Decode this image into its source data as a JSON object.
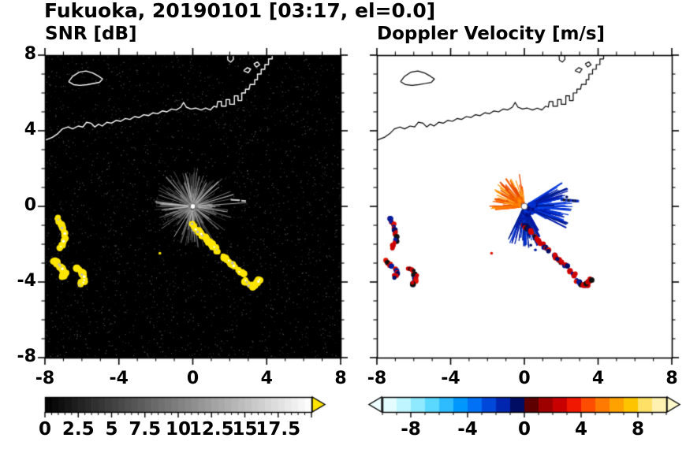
{
  "title": "Fukuoka, 20190101 [03:17, el=0.0]",
  "chart_data": [
    {
      "panel": "left",
      "type": "heatmap",
      "title": "SNR [dB]",
      "xlabel": "",
      "ylabel": "",
      "xlim": [
        -8,
        8
      ],
      "ylim": [
        -8,
        8
      ],
      "x_tick_labels": [
        "-8",
        "-4",
        "0",
        "4",
        "8"
      ],
      "x_tick_values": [
        -8,
        -4,
        0,
        4,
        8
      ],
      "y_tick_labels": [
        "8",
        "4",
        "0",
        "-4",
        "-8"
      ],
      "y_tick_values": [
        8,
        4,
        0,
        -4,
        -8
      ],
      "minor_tick_step": 1,
      "background": "#000000",
      "radar_center": [
        0,
        0
      ],
      "colorbar": {
        "min": 0,
        "max": 20,
        "labels": [
          "0",
          "2.5",
          "5",
          "7.5",
          "10",
          "12.5",
          "15",
          "17.5"
        ],
        "label_values": [
          0,
          2.5,
          5,
          7.5,
          10,
          12.5,
          15,
          17.5
        ],
        "minor_tick_step": 0.5,
        "type": "grayscale",
        "start_color": "#000000",
        "end_color": "#ffffff",
        "arrow_right_color": "#ffe400"
      },
      "content": {
        "noise_speckle_count": 2300,
        "clutter_rays": {
          "count": 280,
          "max_len_km": 1.9
        },
        "long_rays_deg_km": [
          [
            4,
            2.9
          ],
          [
            16,
            2.3
          ],
          [
            175,
            2.0
          ],
          [
            187,
            1.7
          ],
          [
            -9,
            1.9
          ],
          [
            258,
            1.3
          ],
          [
            102,
            1.3
          ],
          [
            60,
            1.5
          ]
        ],
        "echo_color": "#ffe600",
        "echo_core_colors": [
          "#ffffff",
          "#bdbdbd"
        ],
        "dash_color": "#cfcfcf",
        "center_dot_color": "#ffffff"
      }
    },
    {
      "panel": "right",
      "type": "heatmap",
      "title": "Doppler Velocity [m/s]",
      "xlabel": "",
      "ylabel": "",
      "xlim": [
        -8,
        8
      ],
      "ylim": [
        -8,
        8
      ],
      "x_tick_labels": [
        "-8",
        "-4",
        "0",
        "4",
        "8"
      ],
      "x_tick_values": [
        -8,
        -4,
        0,
        4,
        8
      ],
      "minor_tick_step": 1,
      "background": "#ffffff",
      "radar_center": [
        0,
        0
      ],
      "colorbar": {
        "min": -10,
        "max": 10,
        "labels": [
          "-8",
          "-4",
          "0",
          "4",
          "8"
        ],
        "label_values": [
          -8,
          -4,
          0,
          4,
          8
        ],
        "minor_tick_step": 1,
        "segment_step": 1,
        "segment_colors": [
          "#e2fcff",
          "#bef5ff",
          "#8fe9ff",
          "#5bd8ff",
          "#2fbcff",
          "#0098ff",
          "#0070f4",
          "#0048da",
          "#0026b0",
          "#000d62",
          "#5e0000",
          "#9e0000",
          "#c80000",
          "#f01800",
          "#ff4d00",
          "#ff7a00",
          "#ffa200",
          "#ffc400",
          "#ffe066",
          "#fff2b0"
        ],
        "arrow_left_color": "#eefdff",
        "arrow_right_color": "#fff8c8"
      },
      "content": {
        "fans": [
          {
            "name": "away-right",
            "angle_deg": [
              -30,
              32
            ],
            "max_len_km": 2.3,
            "count": 170,
            "palette": [
              "#0018a8",
              "#0030d0",
              "#0a3ae0",
              "#001c8c",
              "#0646f0"
            ]
          },
          {
            "name": "away-down",
            "angle_deg": [
              -118,
              -55
            ],
            "max_len_km": 1.9,
            "count": 120,
            "palette": [
              "#0018a8",
              "#0030d0",
              "#001c8c",
              "#06269a"
            ]
          },
          {
            "name": "toward-upleft",
            "angle_deg": [
              95,
              190
            ],
            "max_len_km": 1.6,
            "count": 160,
            "palette": [
              "#ff8c00",
              "#ff6a00",
              "#f05800",
              "#ffa020",
              "#e84800"
            ]
          }
        ],
        "echo_palette": [
          "#cc0000",
          "#e01000",
          "#d40000",
          "#001a9e",
          "#000d66",
          "#101010",
          "#c80000"
        ],
        "extra_specks": [
          [
            0.35,
            -2.05
          ],
          [
            0.6,
            -2.3
          ],
          [
            2.3,
            0.5
          ]
        ],
        "center_dot_color": "#ffffff"
      }
    }
  ],
  "map": {
    "coastline_main": [
      [
        -8.0,
        3.5
      ],
      [
        -7.6,
        3.65
      ],
      [
        -7.3,
        3.85
      ],
      [
        -7.05,
        4.1
      ],
      [
        -6.75,
        4.2
      ],
      [
        -6.5,
        4.1
      ],
      [
        -6.2,
        4.25
      ],
      [
        -5.95,
        4.2
      ],
      [
        -5.75,
        4.45
      ],
      [
        -5.5,
        4.4
      ],
      [
        -5.3,
        4.2
      ],
      [
        -5.1,
        4.35
      ],
      [
        -4.9,
        4.25
      ],
      [
        -4.65,
        4.45
      ],
      [
        -4.4,
        4.4
      ],
      [
        -4.15,
        4.55
      ],
      [
        -3.9,
        4.5
      ],
      [
        -3.65,
        4.65
      ],
      [
        -3.4,
        4.6
      ],
      [
        -3.15,
        4.75
      ],
      [
        -2.9,
        4.7
      ],
      [
        -2.65,
        4.85
      ],
      [
        -2.4,
        4.8
      ],
      [
        -2.15,
        4.95
      ],
      [
        -1.9,
        4.9
      ],
      [
        -1.65,
        5.05
      ],
      [
        -1.4,
        5.0
      ],
      [
        -1.15,
        5.15
      ],
      [
        -0.9,
        5.1
      ],
      [
        -0.65,
        5.25
      ],
      [
        -0.5,
        5.5
      ],
      [
        -0.35,
        5.25
      ],
      [
        -0.1,
        5.15
      ],
      [
        0.15,
        5.2
      ],
      [
        0.45,
        5.1
      ],
      [
        0.7,
        5.2
      ],
      [
        0.95,
        5.1
      ],
      [
        1.15,
        5.3
      ],
      [
        1.3,
        5.25
      ],
      [
        1.35,
        5.55
      ],
      [
        1.55,
        5.55
      ],
      [
        1.55,
        5.3
      ],
      [
        1.8,
        5.3
      ],
      [
        1.8,
        5.65
      ],
      [
        2.0,
        5.65
      ],
      [
        2.0,
        5.4
      ],
      [
        2.25,
        5.4
      ],
      [
        2.25,
        5.85
      ],
      [
        2.45,
        5.85
      ],
      [
        2.45,
        5.6
      ],
      [
        2.65,
        5.6
      ],
      [
        2.65,
        6.0
      ],
      [
        2.85,
        6.0
      ],
      [
        2.85,
        6.2
      ],
      [
        3.05,
        6.2
      ],
      [
        3.1,
        6.45
      ],
      [
        3.35,
        6.45
      ],
      [
        3.35,
        6.7
      ],
      [
        3.5,
        6.7
      ],
      [
        3.5,
        7.0
      ],
      [
        3.7,
        7.0
      ],
      [
        3.7,
        7.25
      ],
      [
        3.9,
        7.25
      ],
      [
        3.9,
        7.5
      ],
      [
        4.1,
        7.5
      ],
      [
        4.1,
        7.8
      ],
      [
        4.3,
        7.8
      ],
      [
        4.3,
        8.05
      ]
    ],
    "island": [
      [
        -6.72,
        6.6
      ],
      [
        -6.5,
        6.88
      ],
      [
        -6.15,
        7.1
      ],
      [
        -5.78,
        7.16
      ],
      [
        -5.42,
        7.06
      ],
      [
        -5.12,
        6.9
      ],
      [
        -4.88,
        6.74
      ],
      [
        -5.05,
        6.56
      ],
      [
        -5.38,
        6.5
      ],
      [
        -5.72,
        6.44
      ],
      [
        -6.1,
        6.4
      ],
      [
        -6.45,
        6.44
      ],
      [
        -6.72,
        6.6
      ]
    ],
    "islets": [
      [
        [
          2.75,
          7.18
        ],
        [
          2.95,
          7.34
        ],
        [
          3.13,
          7.26
        ],
        [
          3.0,
          7.07
        ],
        [
          2.75,
          7.18
        ]
      ],
      [
        [
          3.3,
          7.54
        ],
        [
          3.5,
          7.64
        ],
        [
          3.62,
          7.49
        ],
        [
          3.44,
          7.37
        ],
        [
          3.3,
          7.54
        ]
      ]
    ],
    "pier": [
      [
        1.88,
        8.05
      ],
      [
        1.9,
        7.74
      ],
      [
        2.06,
        7.63
      ],
      [
        2.2,
        7.78
      ],
      [
        2.18,
        8.05
      ]
    ]
  },
  "echoes": {
    "arcs": [
      [
        [
          -7.3,
          -0.65
        ],
        [
          -7.12,
          -0.95
        ],
        [
          -6.98,
          -1.3
        ],
        [
          -6.92,
          -1.65
        ],
        [
          -7.0,
          -1.95
        ],
        [
          -7.18,
          -2.18
        ]
      ],
      [
        [
          -7.5,
          -2.9
        ],
        [
          -7.28,
          -3.08
        ],
        [
          -7.05,
          -3.3
        ],
        [
          -6.9,
          -3.55
        ],
        [
          -7.08,
          -3.75
        ]
      ],
      [
        [
          -6.25,
          -3.25
        ],
        [
          -6.05,
          -3.45
        ],
        [
          -5.88,
          -3.7
        ],
        [
          -5.92,
          -3.98
        ],
        [
          -6.1,
          -4.1
        ]
      ],
      [
        [
          -0.05,
          -0.95
        ],
        [
          0.18,
          -1.18
        ],
        [
          0.42,
          -1.42
        ],
        [
          0.65,
          -1.65
        ],
        [
          0.88,
          -1.9
        ],
        [
          1.1,
          -2.12
        ],
        [
          1.32,
          -2.35
        ]
      ],
      [
        [
          1.62,
          -2.62
        ],
        [
          1.85,
          -2.82
        ],
        [
          2.08,
          -3.02
        ],
        [
          2.3,
          -3.2
        ]
      ],
      [
        [
          2.52,
          -3.42
        ],
        [
          2.7,
          -3.62
        ]
      ],
      [
        [
          2.85,
          -3.95
        ],
        [
          3.05,
          -4.15
        ],
        [
          3.28,
          -4.22
        ],
        [
          3.5,
          -4.05
        ],
        [
          3.6,
          -3.85
        ]
      ]
    ],
    "specks": [
      [
        -1.78,
        -2.48
      ]
    ],
    "dashes": [
      [
        [
          2.05,
          0.35
        ],
        [
          2.55,
          0.32
        ]
      ],
      [
        [
          2.62,
          0.3
        ],
        [
          2.88,
          0.28
        ]
      ]
    ]
  }
}
